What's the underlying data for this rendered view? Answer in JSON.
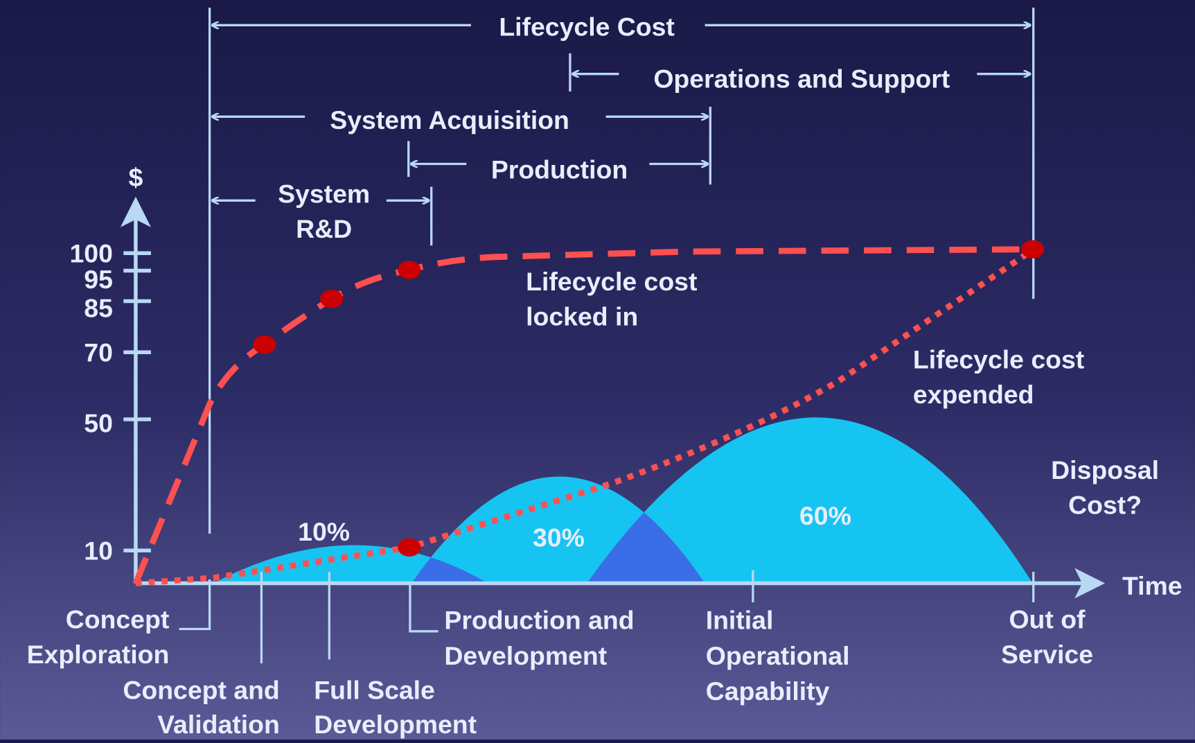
{
  "y_axis": {
    "label": "$",
    "ticks": [
      "100",
      "95",
      "85",
      "70",
      "50",
      "10"
    ]
  },
  "x_axis": {
    "label": "Time"
  },
  "spans": {
    "lifecycle_cost": "Lifecycle Cost",
    "operations_support": "Operations and Support",
    "system_acquisition": "System Acquisition",
    "production": "Production",
    "system_rd": [
      "System",
      "R&D"
    ]
  },
  "curves": {
    "locked_in": [
      "Lifecycle cost",
      "locked in"
    ],
    "expended": [
      "Lifecycle cost",
      "expended"
    ]
  },
  "phases": [
    "10%",
    "30%",
    "60%"
  ],
  "disposal": [
    "Disposal",
    "Cost?"
  ],
  "milestones": [
    {
      "lines": [
        "Concept",
        "Exploration"
      ]
    },
    {
      "lines": [
        "Concept and",
        "Validation"
      ]
    },
    {
      "lines": [
        "Full Scale",
        "Development"
      ]
    },
    {
      "lines": [
        "Production and",
        "Development"
      ]
    },
    {
      "lines": [
        "Initial",
        "Operational",
        "Capability"
      ]
    },
    {
      "lines": [
        "Out of",
        "Service"
      ]
    }
  ]
}
